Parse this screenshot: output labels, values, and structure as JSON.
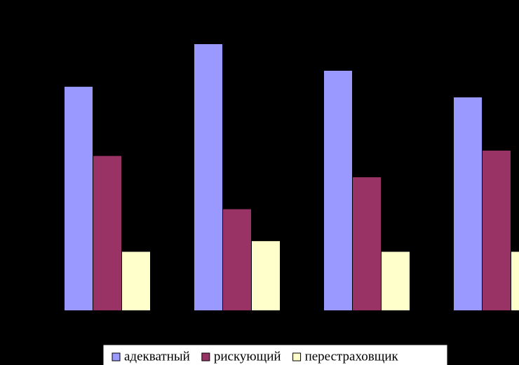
{
  "chart_data": {
    "type": "bar",
    "categories": [
      null,
      null,
      null,
      null
    ],
    "series": [
      {
        "name": "адекватный",
        "color": "#9999ff",
        "values": [
          42,
          50,
          45,
          40
        ]
      },
      {
        "name": "рискующий",
        "color": "#993366",
        "values": [
          29,
          19,
          25,
          30
        ]
      },
      {
        "name": "перестраховщик",
        "color": "#ffffcc",
        "values": [
          11,
          13,
          11,
          11
        ]
      }
    ],
    "legend": "bottom"
  }
}
